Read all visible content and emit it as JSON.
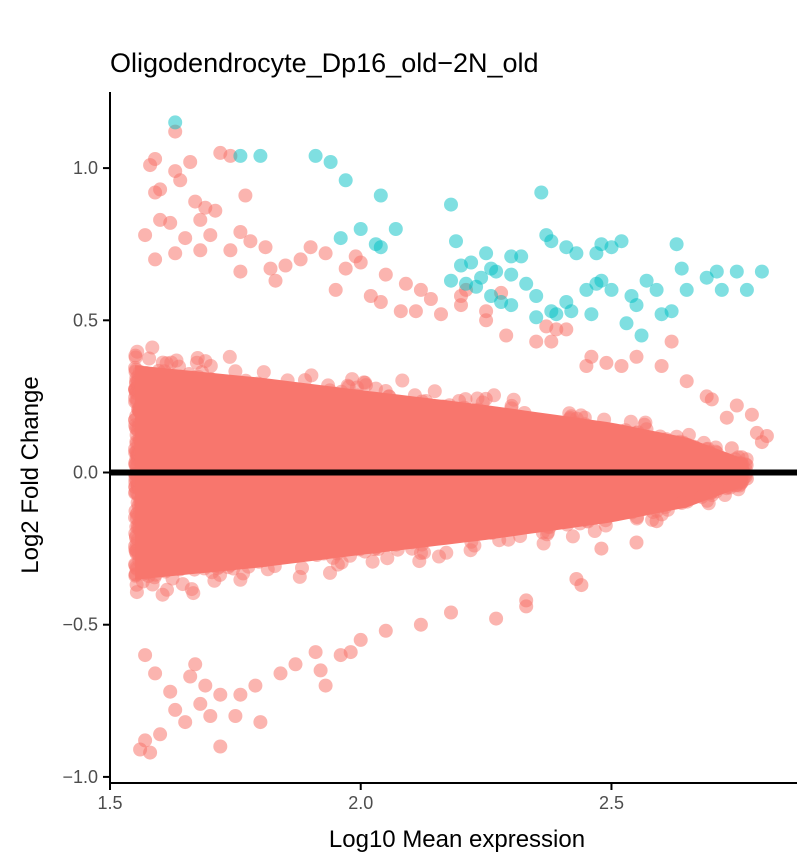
{
  "chart_data": {
    "type": "scatter",
    "title": "Oligodendrocyte_Dp16_old−2N_old",
    "xlabel": "Log10 Mean expression",
    "ylabel": "Log2 Fold Change",
    "xlim": [
      1.5,
      2.87
    ],
    "ylim": [
      -1.02,
      1.25
    ],
    "x_ticks": [
      1.5,
      2.0,
      2.5
    ],
    "x_tick_labels": [
      "1.5",
      "2.0",
      "2.5"
    ],
    "y_ticks": [
      -1.0,
      -0.5,
      0.0,
      0.5,
      1.0
    ],
    "y_tick_labels": [
      "−1.0",
      "−0.5",
      "0.0",
      "0.5",
      "1.0"
    ],
    "hline": 0,
    "grid": false,
    "legend": "none",
    "colors": {
      "not_significant": "#F8766D",
      "significant": "#00BFC4"
    },
    "series": [
      {
        "values": [
          [
            1.63,
            1.12
          ],
          [
            1.66,
            1.02
          ],
          [
            1.59,
            1.03
          ],
          [
            1.58,
            1.01
          ],
          [
            1.63,
            0.99
          ],
          [
            1.6,
            0.93
          ],
          [
            1.59,
            0.92
          ],
          [
            1.64,
            0.96
          ],
          [
            1.67,
            0.89
          ],
          [
            1.72,
            1.05
          ],
          [
            1.74,
            1.04
          ],
          [
            1.69,
            0.87
          ],
          [
            1.71,
            0.86
          ],
          [
            1.77,
            0.91
          ],
          [
            1.68,
            0.83
          ],
          [
            1.62,
            0.82
          ],
          [
            1.6,
            0.83
          ],
          [
            1.57,
            0.78
          ],
          [
            1.7,
            0.78
          ],
          [
            1.76,
            0.79
          ],
          [
            1.78,
            0.76
          ],
          [
            1.81,
            0.74
          ],
          [
            1.74,
            0.73
          ],
          [
            1.68,
            0.73
          ],
          [
            1.65,
            0.77
          ],
          [
            1.63,
            0.72
          ],
          [
            1.59,
            0.7
          ],
          [
            1.9,
            0.74
          ],
          [
            1.93,
            0.72
          ],
          [
            1.85,
            0.68
          ],
          [
            1.88,
            0.7
          ],
          [
            1.99,
            0.71
          ],
          [
            1.97,
            0.67
          ],
          [
            2.0,
            0.69
          ],
          [
            2.09,
            0.62
          ],
          [
            2.05,
            0.65
          ],
          [
            1.82,
            0.67
          ],
          [
            1.76,
            0.66
          ],
          [
            2.12,
            0.6
          ],
          [
            2.2,
            0.58
          ],
          [
            2.28,
            0.59
          ],
          [
            2.37,
            0.48
          ],
          [
            2.39,
            0.47
          ],
          [
            2.25,
            0.5
          ],
          [
            2.16,
            0.52
          ],
          [
            2.08,
            0.53
          ],
          [
            2.04,
            0.56
          ],
          [
            2.62,
            0.43
          ],
          [
            2.6,
            0.35
          ],
          [
            2.55,
            0.38
          ],
          [
            2.49,
            0.36
          ],
          [
            2.45,
            0.35
          ],
          [
            2.7,
            0.24
          ],
          [
            2.73,
            0.18
          ],
          [
            2.78,
            0.19
          ],
          [
            2.8,
            0.1
          ],
          [
            2.81,
            0.12
          ],
          [
            2.76,
            0.05
          ],
          [
            2.77,
            -0.02
          ],
          [
            2.71,
            -0.05
          ],
          [
            2.68,
            -0.08
          ],
          [
            2.64,
            -0.1
          ],
          [
            2.59,
            -0.16
          ],
          [
            2.55,
            -0.23
          ],
          [
            2.48,
            -0.25
          ],
          [
            2.43,
            -0.35
          ],
          [
            2.33,
            -0.44
          ],
          [
            2.18,
            -0.46
          ],
          [
            2.12,
            -0.5
          ],
          [
            2.05,
            -0.52
          ],
          [
            2.0,
            -0.55
          ],
          [
            1.98,
            -0.59
          ],
          [
            1.96,
            -0.6
          ],
          [
            1.91,
            -0.59
          ],
          [
            1.87,
            -0.63
          ],
          [
            1.84,
            -0.66
          ],
          [
            1.92,
            -0.65
          ],
          [
            1.93,
            -0.7
          ],
          [
            1.79,
            -0.7
          ],
          [
            1.76,
            -0.73
          ],
          [
            1.72,
            -0.73
          ],
          [
            1.69,
            -0.7
          ],
          [
            1.68,
            -0.76
          ],
          [
            1.7,
            -0.8
          ],
          [
            1.75,
            -0.8
          ],
          [
            1.8,
            -0.82
          ],
          [
            1.65,
            -0.82
          ],
          [
            1.63,
            -0.78
          ],
          [
            1.6,
            -0.86
          ],
          [
            1.57,
            -0.88
          ],
          [
            1.56,
            -0.91
          ],
          [
            1.58,
            -0.92
          ],
          [
            1.72,
            -0.9
          ],
          [
            1.62,
            -0.72
          ],
          [
            1.59,
            -0.66
          ],
          [
            1.57,
            -0.6
          ],
          [
            1.67,
            -0.63
          ],
          [
            1.66,
            -0.67
          ],
          [
            2.27,
            -0.48
          ],
          [
            2.33,
            -0.42
          ],
          [
            2.44,
            -0.37
          ],
          [
            2.29,
            0.45
          ],
          [
            2.35,
            0.43
          ],
          [
            2.41,
            0.47
          ],
          [
            2.14,
            0.57
          ],
          [
            2.2,
            0.55
          ],
          [
            2.21,
            0.6
          ],
          [
            2.11,
            0.53
          ],
          [
            1.83,
            0.63
          ],
          [
            1.95,
            0.6
          ],
          [
            2.02,
            0.58
          ],
          [
            2.25,
            0.53
          ],
          [
            2.38,
            0.43
          ],
          [
            2.46,
            0.38
          ],
          [
            2.52,
            0.35
          ],
          [
            2.65,
            0.3
          ],
          [
            2.69,
            0.25
          ],
          [
            2.75,
            0.22
          ],
          [
            2.79,
            0.13
          ],
          [
            2.74,
            0.08
          ]
        ]
      },
      {
        "values": [
          [
            1.63,
            1.15
          ],
          [
            1.76,
            1.04
          ],
          [
            1.8,
            1.04
          ],
          [
            1.91,
            1.04
          ],
          [
            1.94,
            1.02
          ],
          [
            1.97,
            0.96
          ],
          [
            2.04,
            0.91
          ],
          [
            2.18,
            0.88
          ],
          [
            2.36,
            0.92
          ],
          [
            2.0,
            0.8
          ],
          [
            2.07,
            0.8
          ],
          [
            2.03,
            0.75
          ],
          [
            2.04,
            0.74
          ],
          [
            1.96,
            0.77
          ],
          [
            2.19,
            0.76
          ],
          [
            2.25,
            0.72
          ],
          [
            2.3,
            0.71
          ],
          [
            2.37,
            0.78
          ],
          [
            2.38,
            0.76
          ],
          [
            2.41,
            0.74
          ],
          [
            2.43,
            0.72
          ],
          [
            2.48,
            0.75
          ],
          [
            2.47,
            0.72
          ],
          [
            2.52,
            0.76
          ],
          [
            2.5,
            0.74
          ],
          [
            2.63,
            0.75
          ],
          [
            2.64,
            0.67
          ],
          [
            2.71,
            0.66
          ],
          [
            2.75,
            0.66
          ],
          [
            2.8,
            0.66
          ],
          [
            2.77,
            0.6
          ],
          [
            2.72,
            0.6
          ],
          [
            2.69,
            0.64
          ],
          [
            2.65,
            0.6
          ],
          [
            2.59,
            0.6
          ],
          [
            2.57,
            0.63
          ],
          [
            2.54,
            0.58
          ],
          [
            2.5,
            0.6
          ],
          [
            2.47,
            0.62
          ],
          [
            2.45,
            0.6
          ],
          [
            2.41,
            0.56
          ],
          [
            2.39,
            0.52
          ],
          [
            2.35,
            0.58
          ],
          [
            2.33,
            0.62
          ],
          [
            2.3,
            0.65
          ],
          [
            2.27,
            0.66
          ],
          [
            2.24,
            0.64
          ],
          [
            2.2,
            0.68
          ],
          [
            2.18,
            0.63
          ],
          [
            2.21,
            0.62
          ],
          [
            2.23,
            0.61
          ],
          [
            2.26,
            0.58
          ],
          [
            2.28,
            0.56
          ],
          [
            2.3,
            0.55
          ],
          [
            2.35,
            0.51
          ],
          [
            2.38,
            0.53
          ],
          [
            2.42,
            0.53
          ],
          [
            2.46,
            0.52
          ],
          [
            2.53,
            0.49
          ],
          [
            2.55,
            0.55
          ],
          [
            2.6,
            0.52
          ],
          [
            2.62,
            0.53
          ],
          [
            2.56,
            0.45
          ],
          [
            2.48,
            0.63
          ],
          [
            2.32,
            0.71
          ],
          [
            2.26,
            0.67
          ],
          [
            2.22,
            0.69
          ]
        ]
      }
    ],
    "dense_cloud": {
      "x_range": [
        1.55,
        2.77
      ],
      "halfwidth_at_x": [
        [
          1.55,
          0.43
        ],
        [
          1.8,
          0.38
        ],
        [
          2.0,
          0.33
        ],
        [
          2.25,
          0.27
        ],
        [
          2.5,
          0.2
        ],
        [
          2.65,
          0.14
        ],
        [
          2.77,
          0.05
        ]
      ]
    }
  }
}
